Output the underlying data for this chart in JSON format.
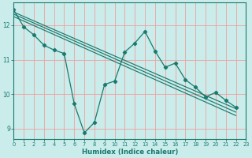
{
  "xlabel": "Humidex (Indice chaleur)",
  "bg_color": "#caecea",
  "line_color": "#1a7a6e",
  "grid_color": "#f0a0a0",
  "xlim": [
    0,
    23
  ],
  "ylim": [
    8.7,
    12.65
  ],
  "xticks": [
    0,
    1,
    2,
    3,
    4,
    5,
    6,
    7,
    8,
    9,
    10,
    11,
    12,
    13,
    14,
    15,
    16,
    17,
    18,
    19,
    20,
    21,
    22,
    23
  ],
  "yticks": [
    9,
    10,
    11,
    12
  ],
  "zigzag_x": [
    0,
    1,
    2,
    3,
    4,
    5,
    6,
    7,
    8,
    9,
    10,
    11,
    12,
    13,
    14,
    15,
    16,
    17,
    18,
    19,
    20,
    21,
    22
  ],
  "zigzag_y": [
    12.45,
    11.95,
    11.72,
    11.42,
    11.28,
    11.18,
    9.72,
    8.88,
    9.18,
    10.28,
    10.38,
    11.22,
    11.48,
    11.82,
    11.25,
    10.78,
    10.9,
    10.42,
    10.2,
    9.92,
    10.05,
    9.82,
    9.62
  ],
  "trend_lines": [
    {
      "x0": 0,
      "y0": 12.38,
      "x1": 22,
      "y1": 9.58
    },
    {
      "x0": 0,
      "y0": 12.32,
      "x1": 22,
      "y1": 9.48
    },
    {
      "x0": 0,
      "y0": 12.25,
      "x1": 22,
      "y1": 9.38
    }
  ]
}
